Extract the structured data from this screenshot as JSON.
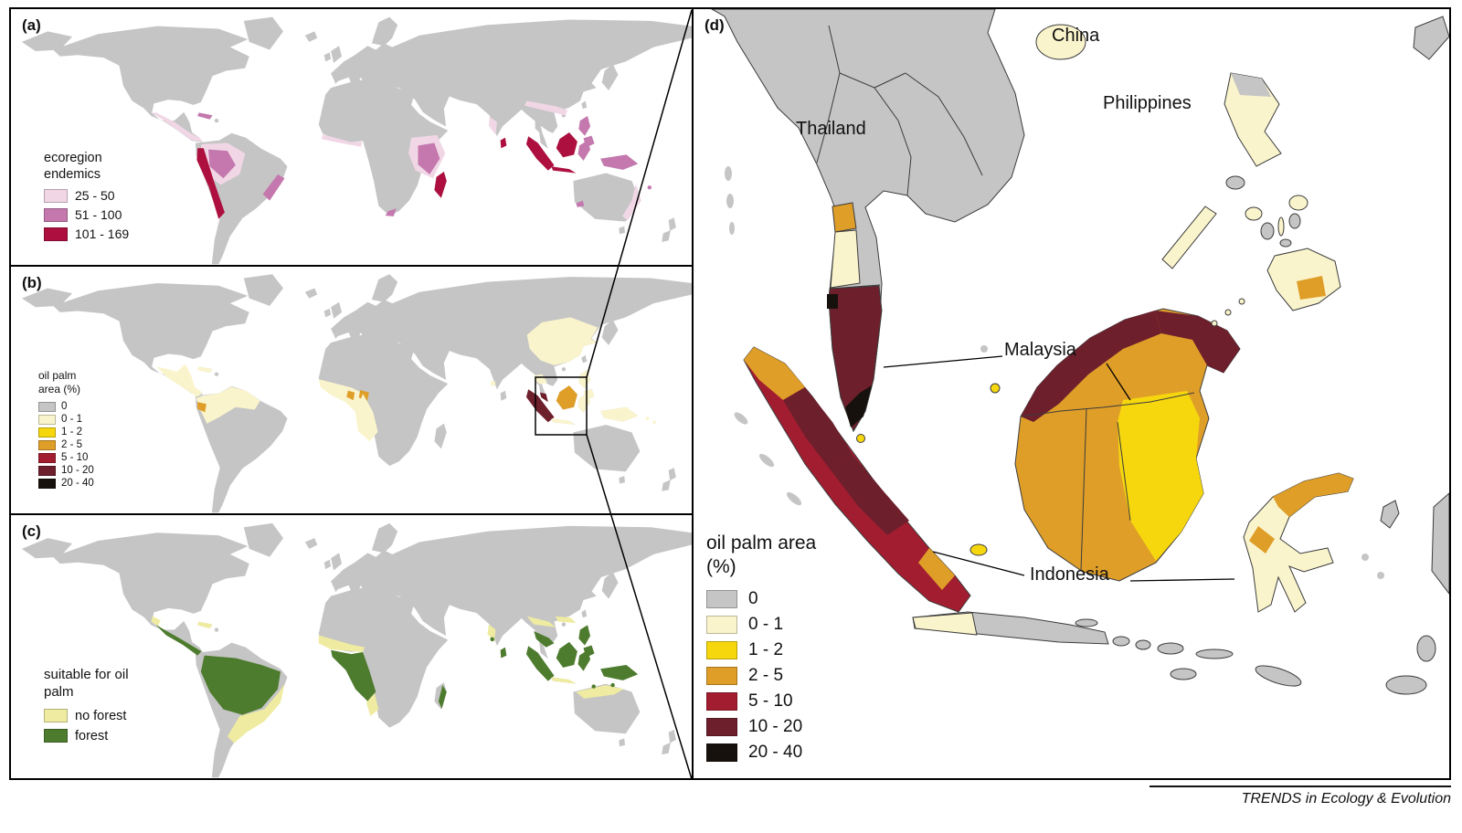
{
  "palette": {
    "land": "#c5c5c5",
    "gray": "#c5c5c5",
    "pale": "#faf4cc",
    "yellow": "#f6d70e",
    "orange": "#df9e28",
    "red": "#a31d30",
    "maroon": "#6e1f2c",
    "black": "#17110d",
    "pink_light": "#f1d7e6",
    "pink_mid": "#c478ae",
    "pink_dark": "#ad0f3f",
    "forest": "#4e7c2e",
    "noforest": "#efeca1"
  },
  "panels": {
    "a": {
      "label": "(a)",
      "legend_title": "ecoregion endemics",
      "legend": [
        {
          "label": "25 - 50",
          "color": "pink_light"
        },
        {
          "label": "51 - 100",
          "color": "pink_mid"
        },
        {
          "label": "101 - 169",
          "color": "pink_dark"
        }
      ]
    },
    "b": {
      "label": "(b)",
      "legend_title": "oil palm area (%)",
      "legend": [
        {
          "label": "0",
          "color": "gray"
        },
        {
          "label": "0 - 1",
          "color": "pale"
        },
        {
          "label": "1 - 2",
          "color": "yellow"
        },
        {
          "label": "2 - 5",
          "color": "orange"
        },
        {
          "label": "5 - 10",
          "color": "red"
        },
        {
          "label": "10 - 20",
          "color": "maroon"
        },
        {
          "label": "20 - 40",
          "color": "black"
        }
      ]
    },
    "c": {
      "label": "(c)",
      "legend_title": "suitable for oil palm",
      "legend": [
        {
          "label": "no forest",
          "color": "noforest"
        },
        {
          "label": "forest",
          "color": "forest"
        }
      ]
    },
    "d": {
      "label": "(d)",
      "legend_title": "oil palm area (%)",
      "legend": [
        {
          "label": "0",
          "color": "gray"
        },
        {
          "label": "0 - 1",
          "color": "pale"
        },
        {
          "label": "1 - 2",
          "color": "yellow"
        },
        {
          "label": "2 - 5",
          "color": "orange"
        },
        {
          "label": "5 - 10",
          "color": "red"
        },
        {
          "label": "10 - 20",
          "color": "maroon"
        },
        {
          "label": "20 - 40",
          "color": "black"
        }
      ],
      "labels": {
        "china": "China",
        "philippines": "Philippines",
        "thailand": "Thailand",
        "malaysia": "Malaysia",
        "indonesia": "Indonesia"
      }
    }
  },
  "credit": "TRENDS in Ecology & Evolution"
}
